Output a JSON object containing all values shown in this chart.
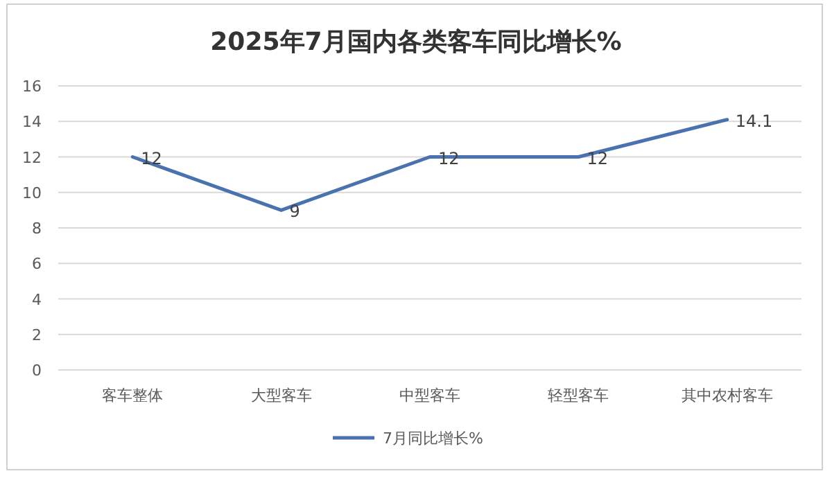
{
  "chart_data": {
    "type": "line",
    "title": "2025年7月国内各类客车同比增长%",
    "categories": [
      "客车整体",
      "大型客车",
      "中型客车",
      "轻型客车",
      "其中农村客车"
    ],
    "series": [
      {
        "name": "7月同比增长%",
        "color": "#4a72b0",
        "values": [
          12,
          9,
          12,
          12,
          14.1
        ]
      }
    ],
    "ylim": [
      0,
      16
    ],
    "yticks": [
      0,
      2,
      4,
      6,
      8,
      10,
      12,
      14,
      16
    ],
    "grid": "y",
    "legend": "bottom",
    "data_labels": true,
    "marker": "none",
    "line_style": "solid"
  }
}
